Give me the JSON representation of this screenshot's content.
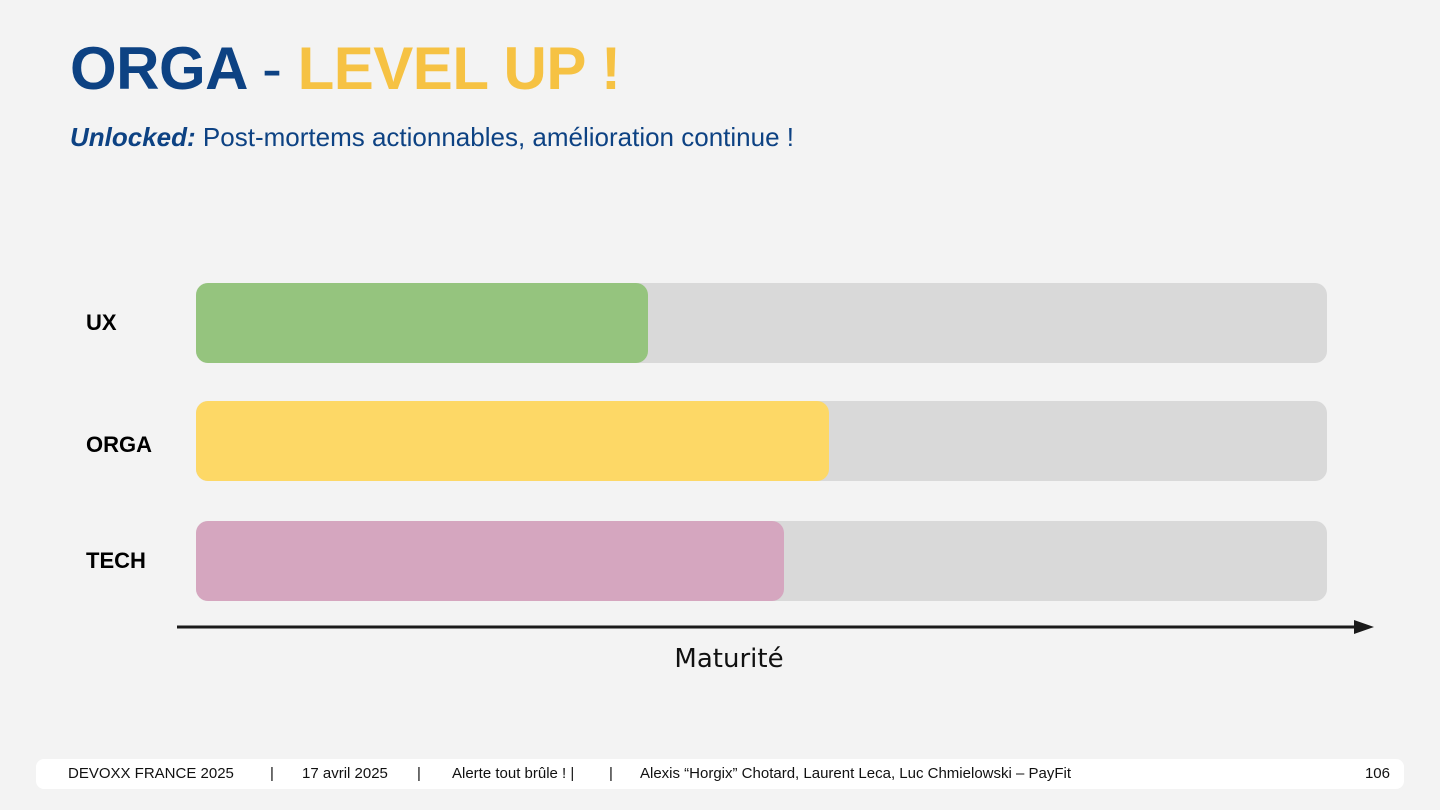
{
  "title": {
    "part1": "ORGA",
    "separator": "-",
    "part2": "LEVEL UP !"
  },
  "subtitle": {
    "lead": "Unlocked:",
    "text": "Post-mortems actionnables, amélioration continue !"
  },
  "colors": {
    "title_blue": "#0d4283",
    "title_yellow": "#f6c243",
    "track": "#d9d9d9"
  },
  "chart_data": {
    "type": "bar",
    "orientation": "horizontal",
    "categories": [
      "UX",
      "ORGA",
      "TECH"
    ],
    "values": [
      40,
      56,
      52
    ],
    "ylim": [
      0,
      100
    ],
    "colors": [
      "#95c47e",
      "#fdd866",
      "#d5a6bf"
    ],
    "xlabel": "Maturité",
    "grid": false
  },
  "footer": {
    "event": "DEVOXX FRANCE 2025",
    "sep1": "|",
    "date": "17 avril 2025",
    "sep2": "|",
    "talk": "Alerte tout brûle !  |",
    "sep3": "|",
    "authors": "Alexis “Horgix” Chotard, Laurent Leca, Luc Chmielowski – PayFit",
    "page": "106"
  }
}
